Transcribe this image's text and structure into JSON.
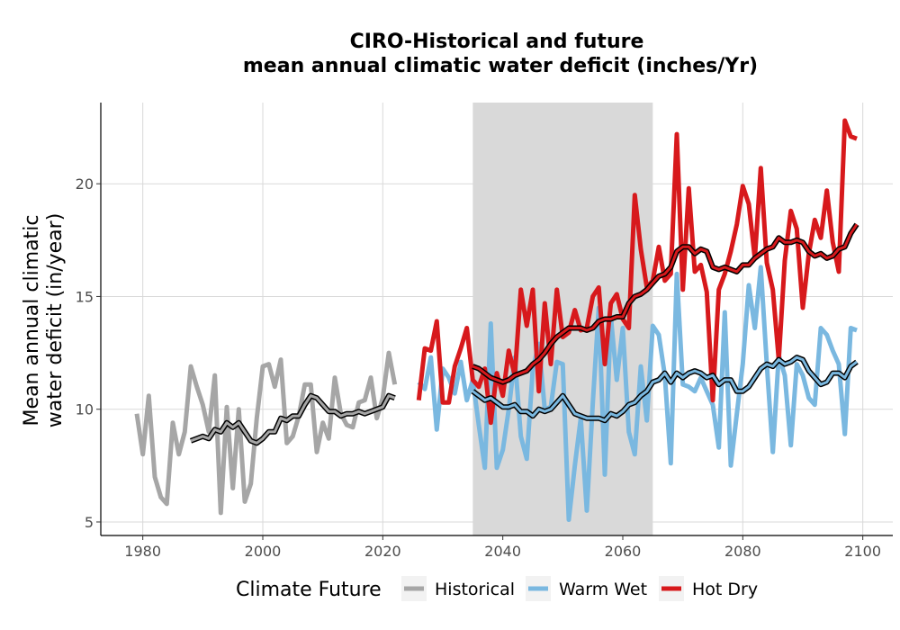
{
  "chart_data": {
    "type": "line",
    "title_lines": [
      "CIRO-Historical and future",
      "mean annual climatic water deficit (inches/Yr)"
    ],
    "xlabel": "",
    "ylabel_lines": [
      "Mean annual climatic",
      "water deficit (in/year)"
    ],
    "xlim": [
      1973,
      2105
    ],
    "ylim": [
      4.4,
      23.6
    ],
    "xticks": [
      1980,
      2000,
      2020,
      2040,
      2060,
      2080,
      2100
    ],
    "yticks": [
      5,
      10,
      15,
      20
    ],
    "grid": true,
    "shaded_period": [
      2035,
      2065
    ],
    "legend": {
      "title": "Climate Future",
      "position": "bottom",
      "entries": [
        "Historical",
        "Warm Wet",
        "Hot Dry"
      ]
    },
    "colors": {
      "Historical": "#a6a6a6",
      "Warm Wet": "#7ab8e0",
      "Hot Dry": "#d7191c",
      "smooth": "#000000",
      "shade": "#d9d9d9"
    },
    "series": [
      {
        "name": "Historical",
        "kind": "annual",
        "x": [
          1979,
          1980,
          1981,
          1982,
          1983,
          1984,
          1985,
          1986,
          1987,
          1988,
          1989,
          1990,
          1991,
          1992,
          1993,
          1994,
          1995,
          1996,
          1997,
          1998,
          1999,
          2000,
          2001,
          2002,
          2003,
          2004,
          2005,
          2006,
          2007,
          2008,
          2009,
          2010,
          2011,
          2012,
          2013,
          2014,
          2015,
          2016,
          2017,
          2018,
          2019,
          2020,
          2021,
          2022
        ],
        "y": [
          9.8,
          8.0,
          10.6,
          7.0,
          6.1,
          5.8,
          9.4,
          8.0,
          9.0,
          11.9,
          11.0,
          10.2,
          9.0,
          11.5,
          5.4,
          10.1,
          6.5,
          10.0,
          5.9,
          6.7,
          9.6,
          11.9,
          12.0,
          11.0,
          12.2,
          8.5,
          8.8,
          9.7,
          11.1,
          11.1,
          8.1,
          9.4,
          8.7,
          11.4,
          9.8,
          9.3,
          9.2,
          10.3,
          10.4,
          11.4,
          9.6,
          10.5,
          12.5,
          11.1
        ]
      },
      {
        "name": "Historical",
        "kind": "smoothed",
        "x": [
          1988,
          1989,
          1990,
          1991,
          1992,
          1993,
          1994,
          1995,
          1996,
          1997,
          1998,
          1999,
          2000,
          2001,
          2002,
          2003,
          2004,
          2005,
          2006,
          2007,
          2008,
          2009,
          2010,
          2011,
          2012,
          2013,
          2014,
          2015,
          2016,
          2017,
          2018,
          2019,
          2020,
          2021,
          2022
        ],
        "y": [
          8.6,
          8.7,
          8.8,
          8.7,
          9.1,
          9.0,
          9.4,
          9.2,
          9.4,
          9.0,
          8.6,
          8.5,
          8.7,
          9.0,
          9.0,
          9.6,
          9.5,
          9.7,
          9.7,
          10.2,
          10.6,
          10.5,
          10.2,
          9.9,
          9.9,
          9.7,
          9.8,
          9.8,
          9.9,
          9.8,
          9.9,
          10.0,
          10.1,
          10.6,
          10.5
        ]
      },
      {
        "name": "Warm Wet",
        "kind": "annual",
        "x": [
          2026,
          2027,
          2028,
          2029,
          2030,
          2031,
          2032,
          2033,
          2034,
          2035,
          2036,
          2037,
          2038,
          2039,
          2040,
          2041,
          2042,
          2043,
          2044,
          2045,
          2046,
          2047,
          2048,
          2049,
          2050,
          2051,
          2052,
          2053,
          2054,
          2055,
          2056,
          2057,
          2058,
          2059,
          2060,
          2061,
          2062,
          2063,
          2064,
          2065,
          2066,
          2067,
          2068,
          2069,
          2070,
          2071,
          2072,
          2073,
          2074,
          2075,
          2076,
          2077,
          2078,
          2079,
          2080,
          2081,
          2082,
          2083,
          2084,
          2085,
          2086,
          2087,
          2088,
          2089,
          2090,
          2091,
          2092,
          2093,
          2094,
          2095,
          2096,
          2097,
          2098,
          2099
        ],
        "y": [
          11.2,
          10.9,
          12.3,
          9.1,
          11.8,
          11.4,
          10.7,
          12.1,
          10.4,
          11.3,
          9.3,
          7.4,
          13.8,
          7.4,
          8.2,
          10.0,
          12.3,
          8.8,
          7.8,
          11.8,
          12.9,
          10.0,
          10.1,
          12.1,
          12.0,
          5.1,
          7.5,
          9.6,
          5.5,
          10.3,
          14.5,
          7.1,
          14.1,
          11.3,
          13.6,
          9.0,
          8.0,
          11.9,
          9.5,
          13.7,
          13.3,
          11.5,
          7.6,
          16.0,
          11.1,
          11.0,
          10.8,
          11.4,
          10.8,
          10.2,
          8.3,
          14.3,
          7.5,
          9.8,
          12.0,
          15.5,
          13.6,
          16.3,
          12.0,
          8.1,
          12.4,
          11.5,
          8.4,
          12.0,
          11.5,
          10.5,
          10.2,
          13.6,
          13.3,
          12.6,
          12.0,
          8.9,
          13.6,
          13.5
        ]
      },
      {
        "name": "Warm Wet",
        "kind": "smoothed",
        "x": [
          2035,
          2036,
          2037,
          2038,
          2039,
          2040,
          2041,
          2042,
          2043,
          2044,
          2045,
          2046,
          2047,
          2048,
          2049,
          2050,
          2051,
          2052,
          2053,
          2054,
          2055,
          2056,
          2057,
          2058,
          2059,
          2060,
          2061,
          2062,
          2063,
          2064,
          2065,
          2066,
          2067,
          2068,
          2069,
          2070,
          2071,
          2072,
          2073,
          2074,
          2075,
          2076,
          2077,
          2078,
          2079,
          2080,
          2081,
          2082,
          2083,
          2084,
          2085,
          2086,
          2087,
          2088,
          2089,
          2090,
          2091,
          2092,
          2093,
          2094,
          2095,
          2096,
          2097,
          2098,
          2099
        ],
        "y": [
          10.8,
          10.6,
          10.4,
          10.5,
          10.3,
          10.1,
          10.1,
          10.2,
          9.9,
          9.9,
          9.7,
          10.0,
          9.9,
          10.0,
          10.3,
          10.6,
          10.2,
          9.8,
          9.7,
          9.6,
          9.6,
          9.6,
          9.5,
          9.8,
          9.7,
          9.9,
          10.2,
          10.3,
          10.6,
          10.8,
          11.2,
          11.3,
          11.6,
          11.2,
          11.6,
          11.4,
          11.6,
          11.7,
          11.6,
          11.4,
          11.5,
          11.1,
          11.3,
          11.3,
          10.8,
          10.8,
          11.0,
          11.4,
          11.8,
          12.0,
          11.9,
          12.2,
          12.0,
          12.1,
          12.3,
          12.2,
          11.7,
          11.4,
          11.1,
          11.2,
          11.6,
          11.6,
          11.4,
          11.9,
          12.1
        ]
      },
      {
        "name": "Hot Dry",
        "kind": "annual",
        "x": [
          2026,
          2027,
          2028,
          2029,
          2030,
          2031,
          2032,
          2033,
          2034,
          2035,
          2036,
          2037,
          2038,
          2039,
          2040,
          2041,
          2042,
          2043,
          2044,
          2045,
          2046,
          2047,
          2048,
          2049,
          2050,
          2051,
          2052,
          2053,
          2054,
          2055,
          2056,
          2057,
          2058,
          2059,
          2060,
          2061,
          2062,
          2063,
          2064,
          2065,
          2066,
          2067,
          2068,
          2069,
          2070,
          2071,
          2072,
          2073,
          2074,
          2075,
          2076,
          2077,
          2078,
          2079,
          2080,
          2081,
          2082,
          2083,
          2084,
          2085,
          2086,
          2087,
          2088,
          2089,
          2090,
          2091,
          2092,
          2093,
          2094,
          2095,
          2096,
          2097,
          2098,
          2099
        ],
        "y": [
          10.4,
          12.7,
          12.6,
          13.9,
          10.3,
          10.3,
          11.9,
          12.7,
          13.6,
          11.3,
          11.0,
          11.8,
          9.4,
          11.6,
          10.6,
          12.6,
          11.5,
          15.3,
          13.7,
          15.3,
          10.8,
          14.7,
          12.0,
          15.3,
          13.2,
          13.4,
          14.4,
          13.5,
          13.6,
          15.0,
          15.4,
          12.0,
          14.7,
          15.1,
          14.0,
          13.6,
          19.5,
          17.1,
          15.4,
          15.7,
          17.2,
          15.7,
          16.0,
          22.2,
          15.3,
          19.8,
          16.1,
          16.4,
          15.2,
          10.4,
          15.3,
          16.0,
          17.0,
          18.2,
          19.9,
          19.1,
          16.7,
          20.7,
          16.5,
          15.3,
          12.2,
          16.6,
          18.8,
          18.0,
          14.5,
          16.9,
          18.4,
          17.6,
          19.7,
          17.4,
          16.1,
          22.8,
          22.1,
          22.0
        ]
      },
      {
        "name": "Hot Dry",
        "kind": "smoothed",
        "x": [
          2035,
          2036,
          2037,
          2038,
          2039,
          2040,
          2041,
          2042,
          2043,
          2044,
          2045,
          2046,
          2047,
          2048,
          2049,
          2050,
          2051,
          2052,
          2053,
          2054,
          2055,
          2056,
          2057,
          2058,
          2059,
          2060,
          2061,
          2062,
          2063,
          2064,
          2065,
          2066,
          2067,
          2068,
          2069,
          2070,
          2071,
          2072,
          2073,
          2074,
          2075,
          2076,
          2077,
          2078,
          2079,
          2080,
          2081,
          2082,
          2083,
          2084,
          2085,
          2086,
          2087,
          2088,
          2089,
          2090,
          2091,
          2092,
          2093,
          2094,
          2095,
          2096,
          2097,
          2098,
          2099
        ],
        "y": [
          11.9,
          11.8,
          11.6,
          11.4,
          11.3,
          11.2,
          11.3,
          11.5,
          11.6,
          11.7,
          12.0,
          12.2,
          12.5,
          12.9,
          13.2,
          13.4,
          13.6,
          13.6,
          13.6,
          13.5,
          13.6,
          13.9,
          14.0,
          14.0,
          14.1,
          14.1,
          14.7,
          15.0,
          15.1,
          15.3,
          15.6,
          15.9,
          16.0,
          16.3,
          17.0,
          17.2,
          17.2,
          16.9,
          17.1,
          17.0,
          16.3,
          16.2,
          16.3,
          16.2,
          16.1,
          16.4,
          16.4,
          16.7,
          16.9,
          17.1,
          17.2,
          17.6,
          17.4,
          17.4,
          17.5,
          17.4,
          17.0,
          16.8,
          16.9,
          16.7,
          16.8,
          17.1,
          17.2,
          17.8,
          18.2
        ]
      }
    ]
  }
}
